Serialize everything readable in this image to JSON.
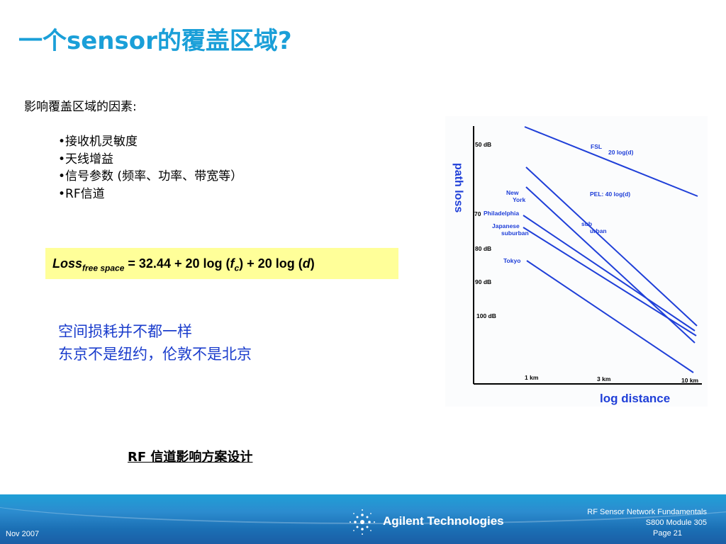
{
  "slide": {
    "title": "一个sensor的覆盖区域?",
    "intro": "影响覆盖区域的因素:",
    "bullets": [
      "•接收机灵敏度",
      "•天线增益",
      "•信号参数 (频率、功率、带宽等）",
      "•RF信道"
    ],
    "formula": {
      "loss": "Loss",
      "loss_sub": "free space",
      "eq_part1": " = 32.44 + 20 log (",
      "f": "f",
      "f_sub": "c",
      "eq_part2": ") + 20 log (",
      "d": "d",
      "eq_part3": ")"
    },
    "notes": [
      "空间损耗并不都一样",
      "东京不是纽约，伦敦不是北京"
    ],
    "link": "RF 信道影响方案设计"
  },
  "chart_data": {
    "type": "line",
    "xlabel": "log distance",
    "ylabel": "path loss",
    "x_ticks": [
      "1 km",
      "3 km",
      "10 km"
    ],
    "y_ticks": [
      "50 dB",
      "70",
      "80 dB",
      "90 dB",
      "100 dB"
    ],
    "series": [
      {
        "name": "FSL",
        "label2": "20 log(d)"
      },
      {
        "name": "PEL: 40 log(d)"
      },
      {
        "name": "New York"
      },
      {
        "name": "Philadelphia"
      },
      {
        "name": "Japanese suburban"
      },
      {
        "name": "sub urban"
      },
      {
        "name": "Tokyo"
      }
    ],
    "labels": {
      "fsl": "FSL",
      "fsl_formula": "20 log(d)",
      "pel": "PEL: 40 log(d)",
      "new_york_1": "New",
      "new_york_2": "York",
      "philadelphia": "Philadelphia",
      "japanese_1": "Japanese",
      "japanese_2": "suburban",
      "suburban_1": "sub",
      "suburban_2": "urban",
      "tokyo": "Tokyo"
    },
    "line_color": "#1f3fd8"
  },
  "footer": {
    "date": "Nov 2007",
    "company": "Agilent Technologies",
    "line1": "RF Sensor Network Fundamentals",
    "line2": "S800 Module 305",
    "page": "Page 21"
  }
}
